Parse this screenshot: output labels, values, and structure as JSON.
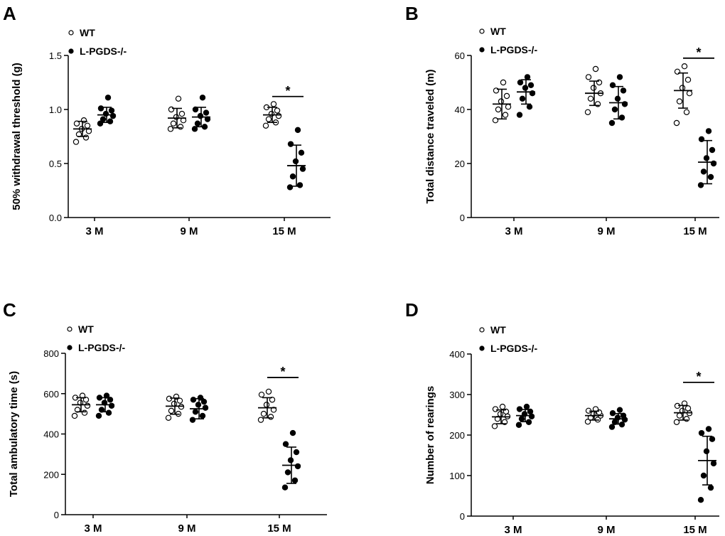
{
  "colors": {
    "wt_fill": "#ffffff",
    "ko_fill": "#000000",
    "stroke": "#000000"
  },
  "chart_data": [
    {
      "type": "scatter",
      "panel": "A",
      "ylabel": "50% withdrawal threshold (g)",
      "ylim": [
        0,
        1.5
      ],
      "yticks": [
        0.0,
        0.5,
        1.0,
        1.5
      ],
      "ytick_labels": [
        "0.0",
        "0.5",
        "1.0",
        "1.5"
      ],
      "categories": [
        "3 M",
        "9 M",
        "15 M"
      ],
      "legend": [
        "WT",
        "L-PGDS-/-"
      ],
      "significance": [
        {
          "category": 2,
          "label": "*",
          "y": 1.12
        }
      ],
      "series": [
        {
          "name": "WT",
          "mean": [
            0.82,
            0.92,
            0.95
          ],
          "sd": [
            0.07,
            0.09,
            0.07
          ],
          "points": [
            [
              0.7,
              0.74,
              0.77,
              0.8,
              0.82,
              0.85,
              0.87,
              0.9
            ],
            [
              0.82,
              0.84,
              0.87,
              0.9,
              0.93,
              0.96,
              1.0,
              1.1
            ],
            [
              0.85,
              0.88,
              0.91,
              0.94,
              0.96,
              0.99,
              1.02,
              1.05
            ]
          ]
        },
        {
          "name": "L-PGDS-/-",
          "mean": [
            0.95,
            0.93,
            0.48
          ],
          "sd": [
            0.07,
            0.09,
            0.19
          ],
          "points": [
            [
              0.87,
              0.89,
              0.91,
              0.94,
              0.96,
              0.99,
              1.01,
              1.11
            ],
            [
              0.82,
              0.84,
              0.87,
              0.91,
              0.94,
              0.97,
              1.0,
              1.11
            ],
            [
              0.28,
              0.3,
              0.38,
              0.45,
              0.52,
              0.6,
              0.68,
              0.81
            ]
          ]
        }
      ]
    },
    {
      "type": "scatter",
      "panel": "B",
      "ylabel": "Total distance traveled (m)",
      "ylim": [
        0,
        60
      ],
      "yticks": [
        0,
        20,
        40,
        60
      ],
      "ytick_labels": [
        "0",
        "20",
        "40",
        "60"
      ],
      "categories": [
        "3 M",
        "9 M",
        "15 M"
      ],
      "legend": [
        "WT",
        "L-PGDS-/-"
      ],
      "significance": [
        {
          "category": 2,
          "label": "*",
          "y": 59
        }
      ],
      "series": [
        {
          "name": "WT",
          "mean": [
            42,
            46,
            47
          ],
          "sd": [
            5.5,
            4.5,
            6.5
          ],
          "points": [
            [
              36,
              38,
              40,
              41,
              43,
              45,
              47,
              50
            ],
            [
              39,
              42,
              44,
              46,
              48,
              50,
              52,
              55
            ],
            [
              35,
              39,
              43,
              46,
              48,
              51,
              54,
              56
            ]
          ]
        },
        {
          "name": "L-PGDS-/-",
          "mean": [
            46.5,
            42.5,
            20.5
          ],
          "sd": [
            4.5,
            6,
            8
          ],
          "points": [
            [
              38,
              41,
              44,
              46,
              48,
              49,
              50,
              52
            ],
            [
              35,
              37,
              40,
              42,
              44,
              47,
              49,
              52
            ],
            [
              12,
              15,
              17,
              20,
              22,
              25,
              29,
              32
            ]
          ]
        }
      ]
    },
    {
      "type": "scatter",
      "panel": "C",
      "ylabel": "Total ambulatory time (s)",
      "ylim": [
        0,
        800
      ],
      "yticks": [
        0,
        200,
        400,
        600,
        800
      ],
      "ytick_labels": [
        "0",
        "200",
        "400",
        "600",
        "800"
      ],
      "categories": [
        "3 M",
        "9 M",
        "15 M"
      ],
      "legend": [
        "WT",
        "L-PGDS-/-"
      ],
      "significance": [
        {
          "category": 2,
          "label": "*",
          "y": 680
        }
      ],
      "series": [
        {
          "name": "WT",
          "mean": [
            545,
            538,
            530
          ],
          "sd": [
            35,
            40,
            50
          ],
          "points": [
            [
              490,
              505,
              520,
              540,
              555,
              570,
              580,
              590
            ],
            [
              480,
              500,
              515,
              535,
              550,
              565,
              575,
              585
            ],
            [
              470,
              485,
              500,
              520,
              545,
              570,
              595,
              610
            ]
          ]
        },
        {
          "name": "L-PGDS-/-",
          "mean": [
            545,
            525,
            245
          ],
          "sd": [
            35,
            50,
            90
          ],
          "points": [
            [
              490,
              505,
              520,
              540,
              555,
              570,
              580,
              590
            ],
            [
              470,
              490,
              510,
              530,
              545,
              560,
              570,
              580
            ],
            [
              135,
              170,
              210,
              240,
              270,
              310,
              350,
              405
            ]
          ]
        }
      ]
    },
    {
      "type": "scatter",
      "panel": "D",
      "ylabel": "Number of rearings",
      "ylim": [
        0,
        400
      ],
      "yticks": [
        0,
        100,
        200,
        300,
        400
      ],
      "ytick_labels": [
        "0",
        "100",
        "200",
        "300",
        "400"
      ],
      "categories": [
        "3 M",
        "9 M",
        "15 M"
      ],
      "legend": [
        "WT",
        "L-PGDS-/-"
      ],
      "significance": [
        {
          "category": 2,
          "label": "*",
          "y": 330
        }
      ],
      "series": [
        {
          "name": "WT",
          "mean": [
            245,
            248,
            255
          ],
          "sd": [
            17,
            11,
            18
          ],
          "points": [
            [
              222,
              232,
              240,
              246,
              252,
              258,
              264,
              270
            ],
            [
              233,
              238,
              243,
              248,
              252,
              256,
              260,
              264
            ],
            [
              232,
              240,
              248,
              254,
              260,
              266,
              272,
              278
            ]
          ]
        },
        {
          "name": "L-PGDS-/-",
          "mean": [
            248,
            240,
            137
          ],
          "sd": [
            15,
            13,
            60
          ],
          "points": [
            [
              225,
              232,
              240,
              246,
              252,
              258,
              264,
              270
            ],
            [
              220,
              226,
              232,
              238,
              243,
              248,
              254,
              262
            ],
            [
              40,
              70,
              100,
              130,
              160,
              190,
              205,
              215
            ]
          ]
        }
      ]
    }
  ]
}
